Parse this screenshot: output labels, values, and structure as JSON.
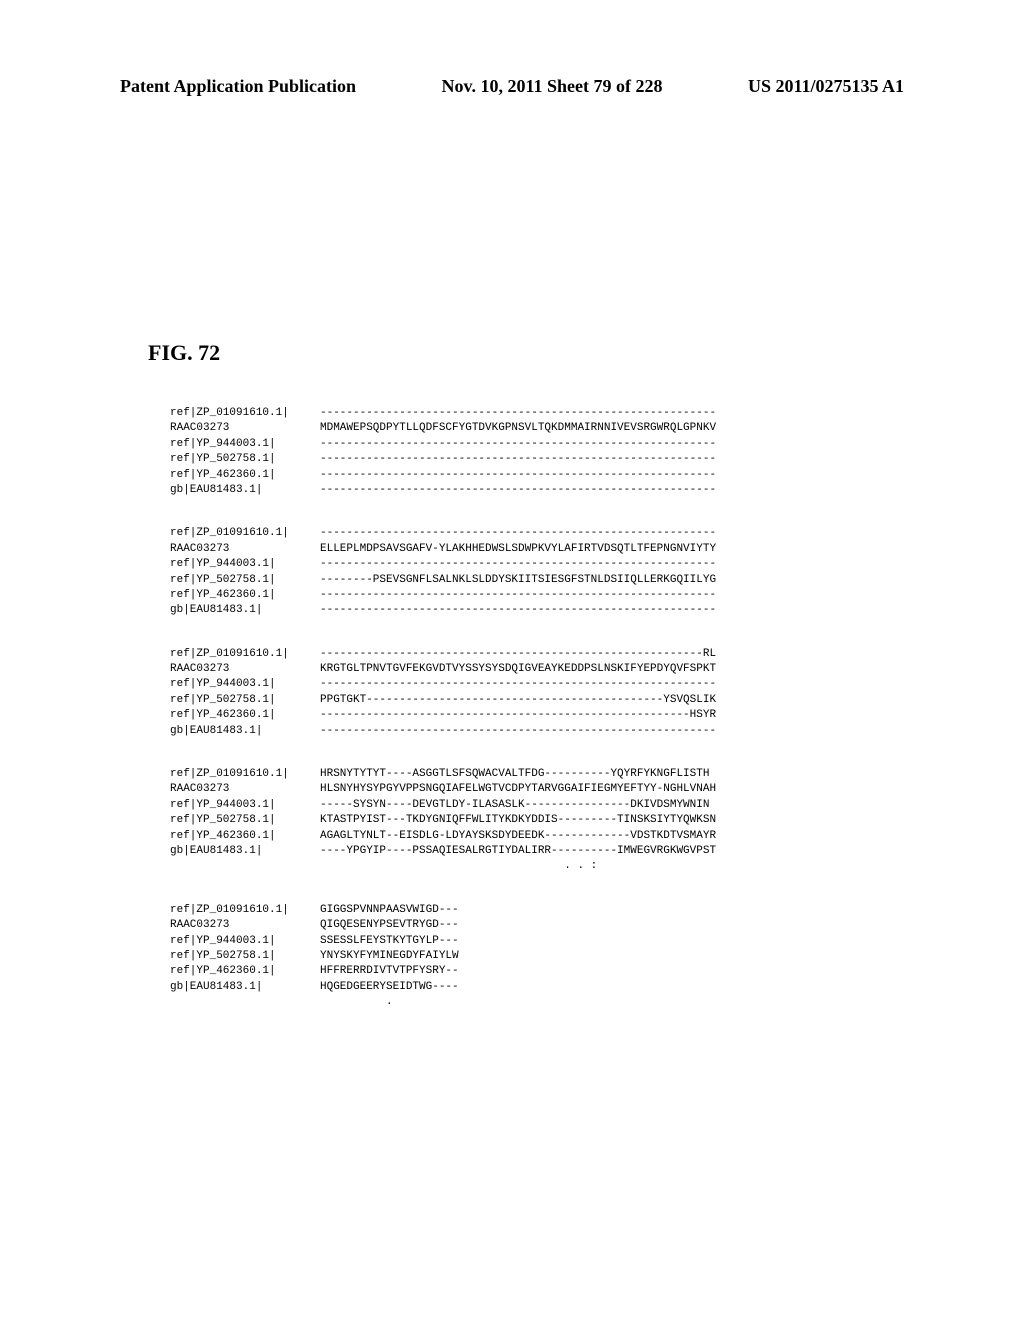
{
  "header": {
    "left": "Patent Application Publication",
    "center": "Nov. 10, 2011  Sheet 79 of 228",
    "right": "US 2011/0275135 A1"
  },
  "figure_title": "FIG. 72",
  "alignment": {
    "blocks": [
      {
        "rows": [
          {
            "label": "ref|ZP_01091610.1|",
            "seq": "------------------------------------------------------------"
          },
          {
            "label": "RAAC03273",
            "seq": "MDMAWEPSQDPYTLLQDFSCFYGTDVKGPNSVLTQKDMMAIRNNIVEVSRGWRQLGPNKV"
          },
          {
            "label": "ref|YP_944003.1|",
            "seq": "------------------------------------------------------------"
          },
          {
            "label": "ref|YP_502758.1|",
            "seq": "------------------------------------------------------------"
          },
          {
            "label": "ref|YP_462360.1|",
            "seq": "------------------------------------------------------------"
          },
          {
            "label": "gb|EAU81483.1|",
            "seq": "------------------------------------------------------------"
          }
        ]
      },
      {
        "rows": [
          {
            "label": "ref|ZP_01091610.1|",
            "seq": "------------------------------------------------------------"
          },
          {
            "label": "RAAC03273",
            "seq": "ELLEPLMDPSAVSGAFV-YLAKHHEDWSLSDWPKVYLAFIRTVDSQTLTFEPNGNVIYTY"
          },
          {
            "label": "ref|YP_944003.1|",
            "seq": "------------------------------------------------------------"
          },
          {
            "label": "ref|YP_502758.1|",
            "seq": "--------PSEVSGNFLSALNKLSLDDYSKIITSIESGFSTNLDSIIQLLERKGQIILYG"
          },
          {
            "label": "ref|YP_462360.1|",
            "seq": "------------------------------------------------------------"
          },
          {
            "label": "gb|EAU81483.1|",
            "seq": "------------------------------------------------------------"
          }
        ]
      },
      {
        "rows": [
          {
            "label": "ref|ZP_01091610.1|",
            "seq": "----------------------------------------------------------RL"
          },
          {
            "label": "RAAC03273",
            "seq": "KRGTGLTPNVTGVFEKGVDTVYSSYSYSDQIGVEAYKEDDPSLNSKIFYEPDYQVFSPKT"
          },
          {
            "label": "ref|YP_944003.1|",
            "seq": "------------------------------------------------------------"
          },
          {
            "label": "ref|YP_502758.1|",
            "seq": "PPGTGKT---------------------------------------------YSVQSLIK"
          },
          {
            "label": "ref|YP_462360.1|",
            "seq": "--------------------------------------------------------HSYR"
          },
          {
            "label": "gb|EAU81483.1|",
            "seq": "------------------------------------------------------------"
          }
        ]
      },
      {
        "rows": [
          {
            "label": "ref|ZP_01091610.1|",
            "seq": "HRSNYTYTYT----ASGGTLSFSQWACVALTFDG----------YQYRFYKNGFLISTH"
          },
          {
            "label": "RAAC03273",
            "seq": "HLSNYHYSYPGYVPPSNGQIAFELWGTVCDPYTARVGGAIFIEGMYEFTYY-NGHLVNAH"
          },
          {
            "label": "ref|YP_944003.1|",
            "seq": "-----SYSYN----DEVGTLDY-ILASASLK----------------DKIVDSMYWNIN"
          },
          {
            "label": "ref|YP_502758.1|",
            "seq": "KTASTPYIST---TKDYGNIQFFWLITYKDKYDDIS---------TINSKSIYTYQWKSN"
          },
          {
            "label": "ref|YP_462360.1|",
            "seq": "AGAGLTYNLT--EISDLG-LDYAYSKSDYDEEDK-------------VDSTKDTVSMAYR"
          },
          {
            "label": "gb|EAU81483.1|",
            "seq": "----YPGYIP----PSSAQIESALRGTIYDALIRR----------IMWEGVRGKWGVPST"
          }
        ],
        "consensus": "                                     . . :"
      },
      {
        "rows": [
          {
            "label": "ref|ZP_01091610.1|",
            "seq": "GIGGSPVNNPAASVWIGD---"
          },
          {
            "label": "RAAC03273",
            "seq": "QIGQESENYPSEVTRYGD---"
          },
          {
            "label": "ref|YP_944003.1|",
            "seq": "SSESSLFEYSTKYTGYLP---"
          },
          {
            "label": "ref|YP_502758.1|",
            "seq": "YNYSKYFYMINEGDYFAIYLW"
          },
          {
            "label": "ref|YP_462360.1|",
            "seq": "HFFRERRDIVTVTPFYSRY--"
          },
          {
            "label": "gb|EAU81483.1|",
            "seq": "HQGEDGEERYSEIDTWG----"
          }
        ],
        "consensus": "          ."
      }
    ]
  }
}
